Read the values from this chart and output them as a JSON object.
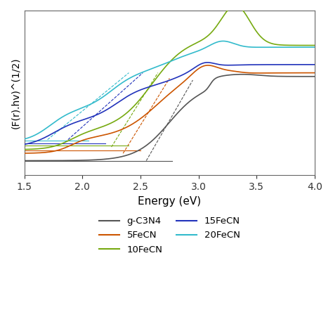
{
  "xlabel": "Energy (eV)",
  "ylabel": "(F(r).hv)^(1/2)",
  "xlim": [
    1.5,
    4.0
  ],
  "colors": {
    "gC3N4": "#555555",
    "5FeCN": "#cc5500",
    "10FeCN": "#77aa11",
    "15FeCN": "#2233bb",
    "20FeCN": "#33bbcc"
  },
  "legend_labels": {
    "gC3N4": "g-C3N4",
    "5FeCN": "5FeCN",
    "10FeCN": "10FeCN",
    "15FeCN": "15FeCN",
    "20FeCN": "20FeCN"
  }
}
